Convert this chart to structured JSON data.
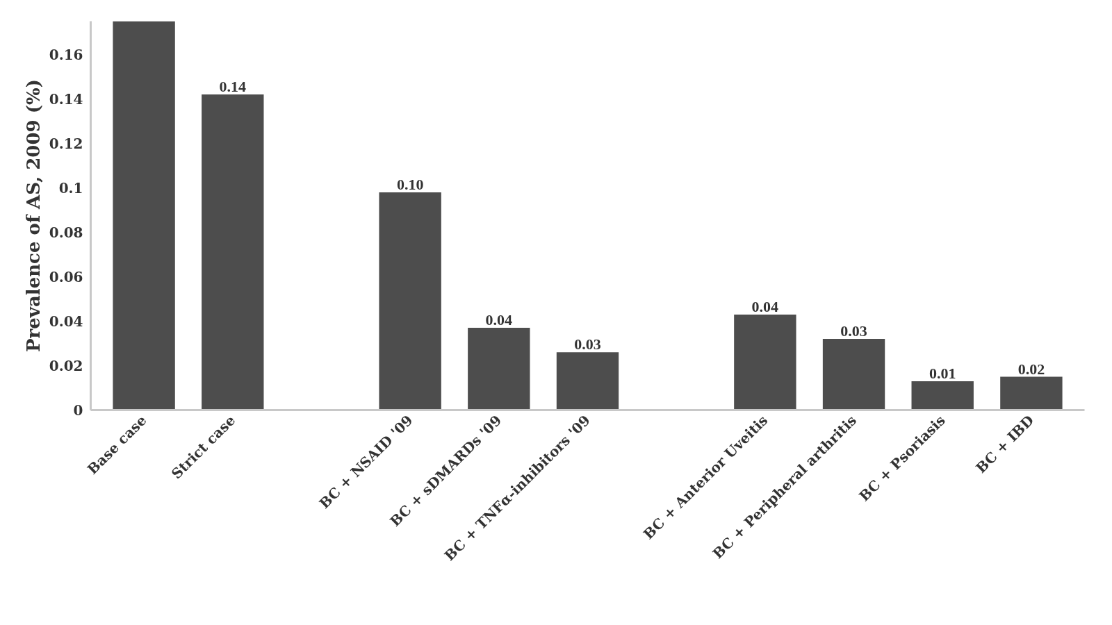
{
  "chart_data": {
    "type": "bar",
    "ylabel": "Prevalence of AS, 2009 (%)",
    "categories": [
      "Base case",
      "Strict case",
      null,
      "BC + NSAID '09",
      "BC + sDMARDs '09",
      "BC + TNFα-inhibitors '09",
      null,
      "BC + Anterior Uveitis",
      "BC + Peripheral arthritis",
      "BC + Psoriasis",
      "BC + IBD"
    ],
    "values": [
      0.175,
      0.142,
      null,
      0.098,
      0.037,
      0.026,
      null,
      0.043,
      0.032,
      0.013,
      0.015
    ],
    "value_labels": [
      null,
      "0.14",
      null,
      "0.10",
      "0.04",
      "0.03",
      null,
      "0.04",
      "0.03",
      "0.01",
      "0.02"
    ],
    "color": "#4d4d4d",
    "ylim": [
      0,
      0.175
    ],
    "yticks": [
      0,
      0.02,
      0.04,
      0.06,
      0.08,
      0.1,
      0.12,
      0.14,
      0.16
    ],
    "grid": false
  }
}
